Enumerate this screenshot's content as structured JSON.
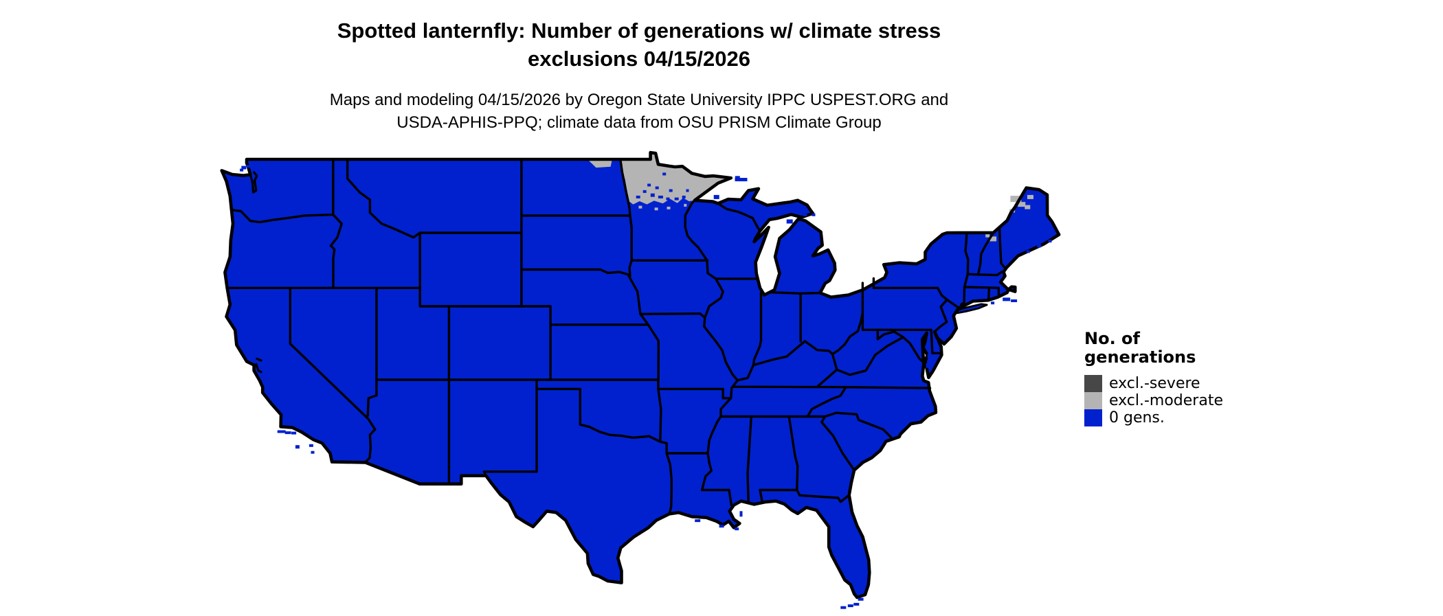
{
  "header": {
    "title_line1": "Spotted lanternfly: Number of generations w/ climate stress",
    "title_line2": "exclusions 04/15/2026",
    "subtitle_line1": "Maps and modeling 04/15/2026 by Oregon State University IPPC USPEST.ORG and",
    "subtitle_line2": "USDA-APHIS-PPQ; climate data from OSU PRISM Climate Group"
  },
  "legend": {
    "title_line1": "No. of",
    "title_line2": "generations",
    "items": [
      {
        "label": "excl.-severe",
        "color": "#474747"
      },
      {
        "label": "excl.-moderate",
        "color": "#b4b4b4"
      },
      {
        "label": "0 gens.",
        "color": "#0121ce"
      }
    ]
  },
  "map": {
    "colors": {
      "zero_gens": "#0121ce",
      "excl_moderate": "#b4b4b4",
      "excl_severe": "#474747",
      "border": "#000000",
      "water": "#ffffff"
    },
    "regions": [
      {
        "name": "contiguous-us",
        "category": "0 gens."
      },
      {
        "name": "northern-minnesota",
        "category": "excl.-moderate"
      },
      {
        "name": "northeastern-north-dakota",
        "category": "excl.-moderate"
      },
      {
        "name": "northern-maine-patches",
        "category": "excl.-moderate"
      }
    ]
  }
}
